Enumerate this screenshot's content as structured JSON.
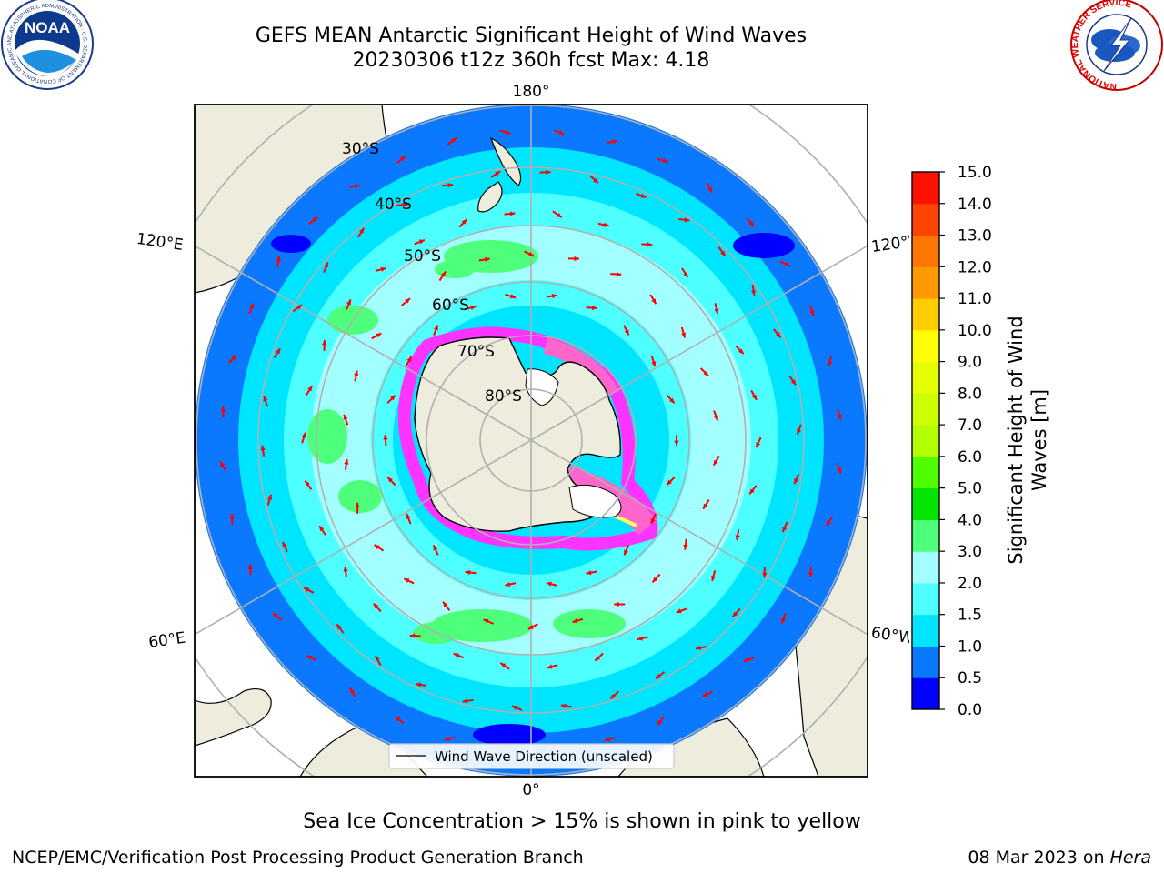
{
  "header": {
    "title": "GEFS MEAN Antarctic Significant Height of Wind Waves",
    "subtitle": "20230306 t12z 360h fcst   Max: 4.18"
  },
  "logos": {
    "noaa_text": "NOAA",
    "noaa_ring": "NATIONAL OCEANIC AND ATMOSPHERIC ADMINISTRATION · U.S. DEPARTMENT OF COMMERCE",
    "nws_ring": "NATIONAL WEATHER SERVICE"
  },
  "map": {
    "projection": "south-polar-stereographic",
    "lon_labels": {
      "top": "180°",
      "bottom": "0°",
      "left_upper": "120°E",
      "left_lower": "60°E",
      "right_upper": "120°W",
      "right_lower": "60°W"
    },
    "lat_labels": [
      "30°S",
      "40°S",
      "50°S",
      "60°S",
      "70°S",
      "80°S"
    ],
    "legend_label": "Wind Wave Direction (unscaled)",
    "arrow_color": "#ff0000",
    "land_color": "#eeecdc",
    "ice_colors": [
      "#ff33ff",
      "#ff66cc",
      "#ffff66"
    ]
  },
  "colorbar": {
    "label": "Significant Height of Wind Waves [m]",
    "label_line1": "Significant Height of Wind",
    "label_line2": "Waves [m]",
    "ticks": [
      "0.0",
      "0.5",
      "1.0",
      "1.5",
      "2.0",
      "3.0",
      "4.0",
      "5.0",
      "6.0",
      "7.0",
      "8.0",
      "9.0",
      "10.0",
      "11.0",
      "12.0",
      "13.0",
      "14.0",
      "15.0"
    ],
    "colors": [
      "#0000ff",
      "#0a78ff",
      "#00e5ff",
      "#4dffff",
      "#a3ffff",
      "#4dff7a",
      "#00e500",
      "#4fff00",
      "#b3ff00",
      "#ccff00",
      "#e5ff00",
      "#ffff00",
      "#ffcc00",
      "#ff9900",
      "#ff7700",
      "#ff4400",
      "#ff1100"
    ]
  },
  "footer": {
    "caption": "Sea Ice Concentration > 15% is shown in pink to yellow",
    "credit": "NCEP/EMC/Verification Post Processing Product Generation Branch",
    "date": "08 Mar 2023 on ",
    "machine": "Hera"
  }
}
